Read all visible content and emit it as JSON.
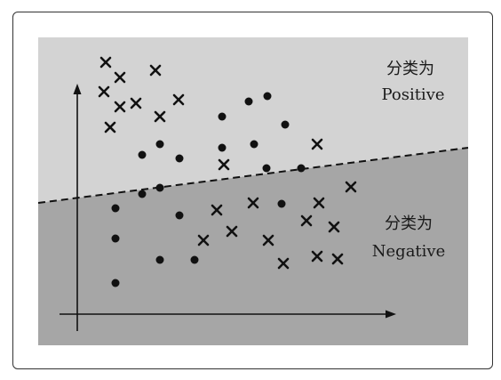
{
  "regions": {
    "positive": {
      "label_line1": "分类为",
      "label_line2": "Positive",
      "color": "#d3d3d3"
    },
    "negative": {
      "label_line1": "分类为",
      "label_line2": "Negative",
      "color": "#a6a6a6"
    }
  },
  "colors": {
    "mark": "#111111",
    "boundary": "#111111",
    "axis": "#111111"
  },
  "decision_boundary": {
    "style": "dashed",
    "icon": "dashed-line"
  },
  "marker_types": {
    "cross": "cross-marker",
    "dot": "dot-marker"
  }
}
